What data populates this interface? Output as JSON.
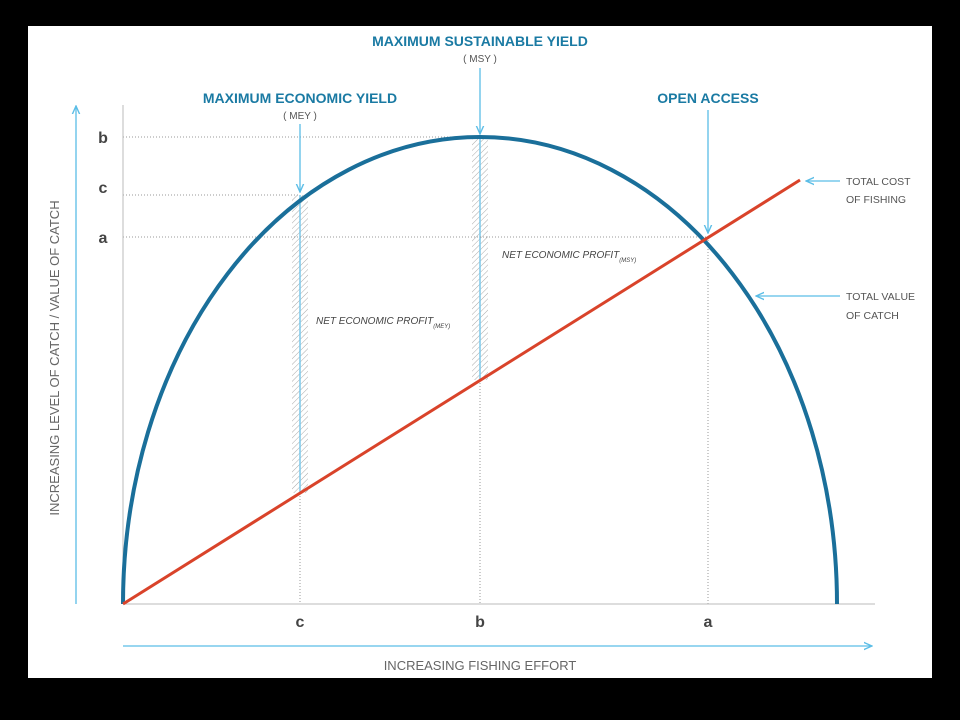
{
  "headings": {
    "msy": {
      "title": "MAXIMUM SUSTAINABLE YIELD",
      "abbr": "( MSY )"
    },
    "mey": {
      "title": "MAXIMUM ECONOMIC YIELD",
      "abbr": "( MEY )"
    },
    "open_access": {
      "title": "OPEN ACCESS"
    }
  },
  "y_axis": {
    "title": "INCREASING LEVEL OF CATCH / VALUE OF CATCH",
    "labels": [
      "b",
      "c",
      "a"
    ]
  },
  "x_axis": {
    "title": "INCREASING FISHING EFFORT",
    "labels": [
      "c",
      "b",
      "a"
    ]
  },
  "curves": {
    "cost": [
      "TOTAL COST",
      "OF FISHING"
    ],
    "value": [
      "TOTAL VALUE",
      "OF CATCH"
    ]
  },
  "profits": {
    "msy": {
      "text": "NET ECONOMIC PROFIT",
      "sub": "(MSY)"
    },
    "mey": {
      "text": "NET ECONOMIC PROFIT",
      "sub": "(MEY)"
    }
  }
}
